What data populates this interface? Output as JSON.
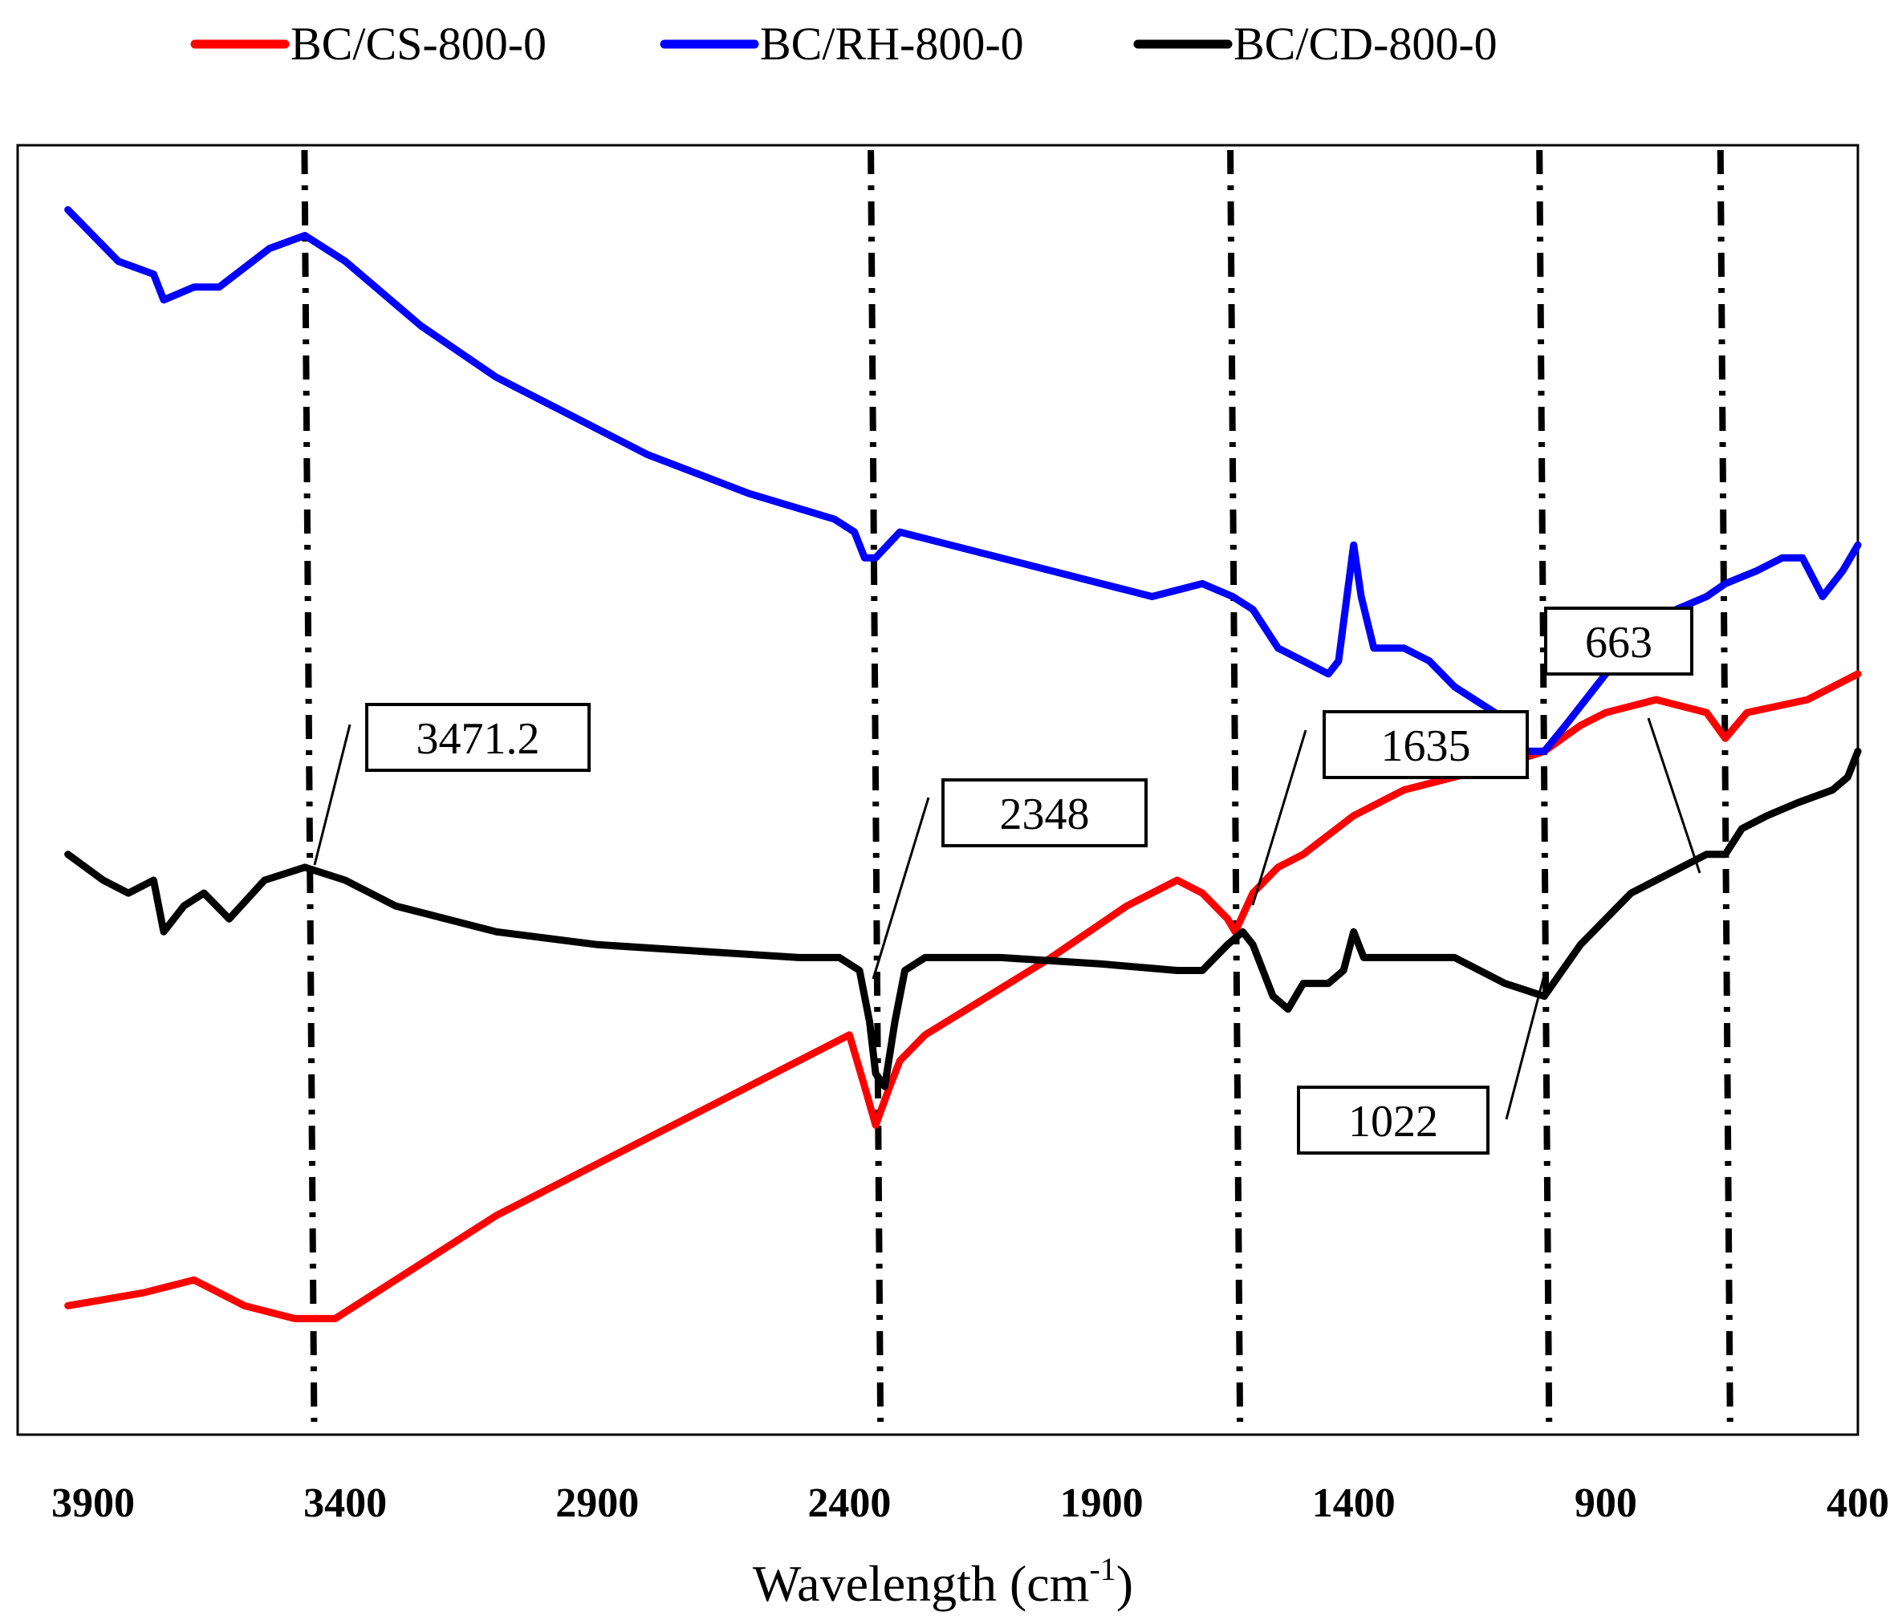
{
  "chart_data": {
    "type": "line",
    "title": "",
    "xlabel": "Wavelength (cm",
    "xlabel_superscript": "-1",
    "xlabel_suffix": ")",
    "ylabel": "",
    "xlim": [
      4000,
      400
    ],
    "x_reversed": true,
    "x_ticks": [
      3900,
      3400,
      2900,
      2400,
      1900,
      1400,
      900,
      400
    ],
    "y_ticks_shown": false,
    "legend_position": "top",
    "series": [
      {
        "name": "BC/CS-800-0",
        "color": "#ff0000",
        "points": [
          [
            3950,
            0.1
          ],
          [
            3800,
            0.11
          ],
          [
            3700,
            0.12
          ],
          [
            3600,
            0.1
          ],
          [
            3500,
            0.09
          ],
          [
            3420,
            0.09
          ],
          [
            3300,
            0.12
          ],
          [
            3100,
            0.17
          ],
          [
            2900,
            0.21
          ],
          [
            2700,
            0.25
          ],
          [
            2550,
            0.28
          ],
          [
            2400,
            0.31
          ],
          [
            2370,
            0.27
          ],
          [
            2348,
            0.24
          ],
          [
            2320,
            0.27
          ],
          [
            2300,
            0.29
          ],
          [
            2250,
            0.31
          ],
          [
            2000,
            0.37
          ],
          [
            1850,
            0.41
          ],
          [
            1750,
            0.43
          ],
          [
            1700,
            0.42
          ],
          [
            1650,
            0.4
          ],
          [
            1635,
            0.39
          ],
          [
            1600,
            0.42
          ],
          [
            1550,
            0.44
          ],
          [
            1500,
            0.45
          ],
          [
            1400,
            0.48
          ],
          [
            1300,
            0.5
          ],
          [
            1200,
            0.51
          ],
          [
            1100,
            0.52
          ],
          [
            1022,
            0.53
          ],
          [
            950,
            0.55
          ],
          [
            900,
            0.56
          ],
          [
            800,
            0.57
          ],
          [
            700,
            0.56
          ],
          [
            663,
            0.54
          ],
          [
            620,
            0.56
          ],
          [
            500,
            0.57
          ],
          [
            400,
            0.59
          ]
        ]
      },
      {
        "name": "BC/RH-800-0",
        "color": "#0000ff",
        "points": [
          [
            3950,
            0.95
          ],
          [
            3850,
            0.91
          ],
          [
            3780,
            0.9
          ],
          [
            3760,
            0.88
          ],
          [
            3700,
            0.89
          ],
          [
            3650,
            0.89
          ],
          [
            3550,
            0.92
          ],
          [
            3480,
            0.93
          ],
          [
            3400,
            0.91
          ],
          [
            3250,
            0.86
          ],
          [
            3100,
            0.82
          ],
          [
            2950,
            0.79
          ],
          [
            2800,
            0.76
          ],
          [
            2600,
            0.73
          ],
          [
            2430,
            0.71
          ],
          [
            2390,
            0.7
          ],
          [
            2370,
            0.68
          ],
          [
            2348,
            0.68
          ],
          [
            2300,
            0.7
          ],
          [
            2200,
            0.69
          ],
          [
            2000,
            0.67
          ],
          [
            1800,
            0.65
          ],
          [
            1700,
            0.66
          ],
          [
            1640,
            0.65
          ],
          [
            1600,
            0.64
          ],
          [
            1550,
            0.61
          ],
          [
            1500,
            0.6
          ],
          [
            1450,
            0.59
          ],
          [
            1430,
            0.6
          ],
          [
            1410,
            0.66
          ],
          [
            1400,
            0.69
          ],
          [
            1385,
            0.65
          ],
          [
            1360,
            0.61
          ],
          [
            1300,
            0.61
          ],
          [
            1250,
            0.6
          ],
          [
            1200,
            0.58
          ],
          [
            1120,
            0.56
          ],
          [
            1060,
            0.53
          ],
          [
            1022,
            0.53
          ],
          [
            980,
            0.55
          ],
          [
            900,
            0.59
          ],
          [
            850,
            0.61
          ],
          [
            800,
            0.63
          ],
          [
            760,
            0.64
          ],
          [
            700,
            0.65
          ],
          [
            663,
            0.66
          ],
          [
            600,
            0.67
          ],
          [
            550,
            0.68
          ],
          [
            510,
            0.68
          ],
          [
            470,
            0.65
          ],
          [
            430,
            0.67
          ],
          [
            400,
            0.69
          ]
        ]
      },
      {
        "name": "BC/CD-800-0",
        "color": "#000000",
        "points": [
          [
            3950,
            0.45
          ],
          [
            3880,
            0.43
          ],
          [
            3830,
            0.42
          ],
          [
            3780,
            0.43
          ],
          [
            3760,
            0.39
          ],
          [
            3720,
            0.41
          ],
          [
            3680,
            0.42
          ],
          [
            3630,
            0.4
          ],
          [
            3560,
            0.43
          ],
          [
            3480,
            0.44
          ],
          [
            3400,
            0.43
          ],
          [
            3300,
            0.41
          ],
          [
            3100,
            0.39
          ],
          [
            2900,
            0.38
          ],
          [
            2700,
            0.375
          ],
          [
            2500,
            0.37
          ],
          [
            2420,
            0.37
          ],
          [
            2380,
            0.36
          ],
          [
            2360,
            0.32
          ],
          [
            2348,
            0.28
          ],
          [
            2330,
            0.27
          ],
          [
            2310,
            0.32
          ],
          [
            2290,
            0.36
          ],
          [
            2250,
            0.37
          ],
          [
            2100,
            0.37
          ],
          [
            1900,
            0.365
          ],
          [
            1750,
            0.36
          ],
          [
            1700,
            0.36
          ],
          [
            1650,
            0.38
          ],
          [
            1620,
            0.39
          ],
          [
            1600,
            0.38
          ],
          [
            1560,
            0.34
          ],
          [
            1530,
            0.33
          ],
          [
            1500,
            0.35
          ],
          [
            1450,
            0.35
          ],
          [
            1420,
            0.36
          ],
          [
            1400,
            0.39
          ],
          [
            1380,
            0.37
          ],
          [
            1350,
            0.37
          ],
          [
            1200,
            0.37
          ],
          [
            1100,
            0.35
          ],
          [
            1022,
            0.34
          ],
          [
            950,
            0.38
          ],
          [
            900,
            0.4
          ],
          [
            850,
            0.42
          ],
          [
            800,
            0.43
          ],
          [
            750,
            0.44
          ],
          [
            700,
            0.45
          ],
          [
            663,
            0.45
          ],
          [
            630,
            0.47
          ],
          [
            580,
            0.48
          ],
          [
            520,
            0.49
          ],
          [
            450,
            0.5
          ],
          [
            420,
            0.51
          ],
          [
            400,
            0.53
          ]
        ]
      }
    ],
    "reference_lines": [
      3471.2,
      2348,
      1635,
      1022,
      663
    ],
    "annotations": [
      {
        "label": "3471.2",
        "x": 3471.2
      },
      {
        "label": "2348",
        "x": 2348
      },
      {
        "label": "1635",
        "x": 1635
      },
      {
        "label": "1022",
        "x": 1022
      },
      {
        "label": "663",
        "x": 663
      }
    ]
  }
}
